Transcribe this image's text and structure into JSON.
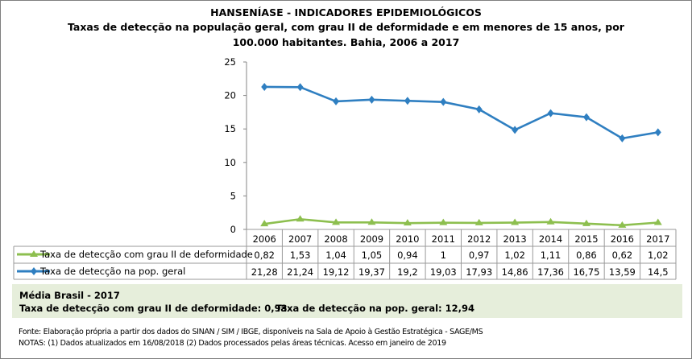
{
  "title": "HANSENÍASE - INDICADORES EPIDEMIOLÓGICOS",
  "subtitle_line1": "Taxas de detecção na população geral, com grau II de deformidade e em menores de 15 anos, por",
  "subtitle_line2": "100.000  habitantes. Bahia, 2006 a 2017",
  "chart_data": {
    "type": "line",
    "categories": [
      "2006",
      "2007",
      "2008",
      "2009",
      "2010",
      "2011",
      "2012",
      "2013",
      "2014",
      "2015",
      "2016",
      "2017"
    ],
    "ylim": [
      0,
      25
    ],
    "yticks": [
      "0",
      "5",
      "10",
      "15",
      "20",
      "25"
    ],
    "grid": false,
    "legend": "data-table",
    "series": [
      {
        "name": "Taxa de detecção com grau II de deformidade",
        "color": "#8dbf4f",
        "marker": "triangle",
        "values": [
          0.82,
          1.53,
          1.04,
          1.05,
          0.94,
          1,
          0.97,
          1.02,
          1.11,
          0.86,
          0.62,
          1.02
        ],
        "labels": [
          "0,82",
          "1,53",
          "1,04",
          "1,05",
          "0,94",
          "1",
          "0,97",
          "1,02",
          "1,11",
          "0,86",
          "0,62",
          "1,02"
        ]
      },
      {
        "name": "Taxa de detecção na pop. geral",
        "color": "#2f7fc1",
        "marker": "diamond",
        "values": [
          21.28,
          21.24,
          19.12,
          19.37,
          19.2,
          19.03,
          17.93,
          14.86,
          17.36,
          16.75,
          13.59,
          14.5
        ],
        "labels": [
          "21,28",
          "21,24",
          "19,12",
          "19,37",
          "19,2",
          "19,03",
          "17,93",
          "14,86",
          "17,36",
          "16,75",
          "13,59",
          "14,5"
        ]
      }
    ]
  },
  "media": {
    "heading": "Média Brasil  - 2017",
    "grau2": "Taxa  de detecção com grau II de deformidade: 0,93",
    "geral": "Taxa  de detecção na pop. geral: 12,94"
  },
  "fonte": "Fonte:  Elaboração própria a partir dos dados do  SINAN / SIM / IBGE, disponíveis na Sala de Apoio à Gestão Estratégica -  SAGE/MS",
  "notas": "NOTAS: (1) Dados atualizados em 16/08/2018 (2) Dados processados pelas áreas técnicas. Acesso em janeiro de 2019"
}
